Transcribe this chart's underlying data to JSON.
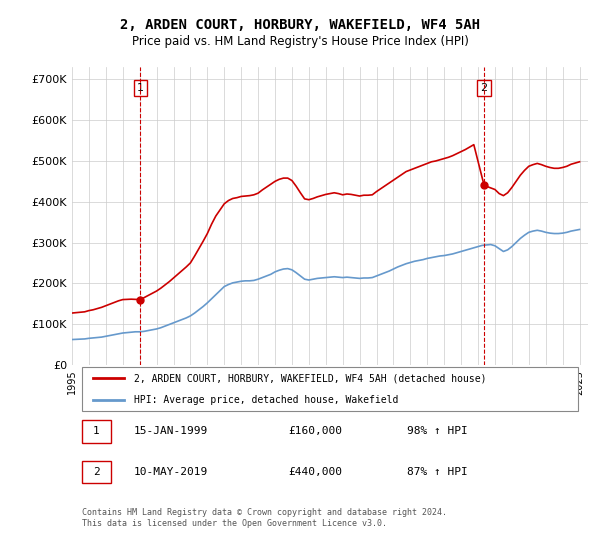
{
  "title": "2, ARDEN COURT, HORBURY, WAKEFIELD, WF4 5AH",
  "subtitle": "Price paid vs. HM Land Registry's House Price Index (HPI)",
  "title_fontsize": 11,
  "subtitle_fontsize": 9,
  "ylabel_ticks": [
    "£0",
    "£100K",
    "£200K",
    "£300K",
    "£400K",
    "£500K",
    "£600K",
    "£700K"
  ],
  "ytick_values": [
    0,
    100000,
    200000,
    300000,
    400000,
    500000,
    600000,
    700000
  ],
  "ylim": [
    0,
    730000
  ],
  "xlim_start": 1995.0,
  "xlim_end": 2025.5,
  "background_color": "#ffffff",
  "grid_color": "#cccccc",
  "purchase1_date": 1999.04,
  "purchase1_price": 160000,
  "purchase1_label": "1",
  "purchase2_date": 2019.36,
  "purchase2_price": 440000,
  "purchase2_label": "2",
  "red_line_color": "#cc0000",
  "blue_line_color": "#6699cc",
  "vline_color": "#cc0000",
  "annotation_box_color": "#cc0000",
  "legend_red_label": "2, ARDEN COURT, HORBURY, WAKEFIELD, WF4 5AH (detached house)",
  "legend_blue_label": "HPI: Average price, detached house, Wakefield",
  "table_row1": [
    "1",
    "15-JAN-1999",
    "£160,000",
    "98% ↑ HPI"
  ],
  "table_row2": [
    "2",
    "10-MAY-2019",
    "£440,000",
    "87% ↑ HPI"
  ],
  "footer": "Contains HM Land Registry data © Crown copyright and database right 2024.\nThis data is licensed under the Open Government Licence v3.0.",
  "hpi_years": [
    1995.0,
    1995.25,
    1995.5,
    1995.75,
    1996.0,
    1996.25,
    1996.5,
    1996.75,
    1997.0,
    1997.25,
    1997.5,
    1997.75,
    1998.0,
    1998.25,
    1998.5,
    1998.75,
    1999.0,
    1999.25,
    1999.5,
    1999.75,
    2000.0,
    2000.25,
    2000.5,
    2000.75,
    2001.0,
    2001.25,
    2001.5,
    2001.75,
    2002.0,
    2002.25,
    2002.5,
    2002.75,
    2003.0,
    2003.25,
    2003.5,
    2003.75,
    2004.0,
    2004.25,
    2004.5,
    2004.75,
    2005.0,
    2005.25,
    2005.5,
    2005.75,
    2006.0,
    2006.25,
    2006.5,
    2006.75,
    2007.0,
    2007.25,
    2007.5,
    2007.75,
    2008.0,
    2008.25,
    2008.5,
    2008.75,
    2009.0,
    2009.25,
    2009.5,
    2009.75,
    2010.0,
    2010.25,
    2010.5,
    2010.75,
    2011.0,
    2011.25,
    2011.5,
    2011.75,
    2012.0,
    2012.25,
    2012.5,
    2012.75,
    2013.0,
    2013.25,
    2013.5,
    2013.75,
    2014.0,
    2014.25,
    2014.5,
    2014.75,
    2015.0,
    2015.25,
    2015.5,
    2015.75,
    2016.0,
    2016.25,
    2016.5,
    2016.75,
    2017.0,
    2017.25,
    2017.5,
    2017.75,
    2018.0,
    2018.25,
    2018.5,
    2018.75,
    2019.0,
    2019.25,
    2019.5,
    2019.75,
    2020.0,
    2020.25,
    2020.5,
    2020.75,
    2021.0,
    2021.25,
    2021.5,
    2021.75,
    2022.0,
    2022.25,
    2022.5,
    2022.75,
    2023.0,
    2023.25,
    2023.5,
    2023.75,
    2024.0,
    2024.25,
    2024.5,
    2024.75,
    2025.0
  ],
  "hpi_values": [
    62000,
    62500,
    63000,
    63500,
    65000,
    66000,
    67000,
    68000,
    70000,
    72000,
    74000,
    76000,
    78000,
    79000,
    80000,
    81000,
    81000,
    82000,
    84000,
    86000,
    88000,
    91000,
    95000,
    99000,
    103000,
    107000,
    111000,
    115000,
    120000,
    127000,
    135000,
    143000,
    152000,
    162000,
    172000,
    182000,
    192000,
    197000,
    201000,
    203000,
    205000,
    206000,
    206000,
    207000,
    210000,
    214000,
    218000,
    222000,
    228000,
    232000,
    235000,
    236000,
    233000,
    226000,
    218000,
    210000,
    208000,
    210000,
    212000,
    213000,
    214000,
    215000,
    216000,
    215000,
    214000,
    215000,
    214000,
    213000,
    212000,
    213000,
    213000,
    214000,
    218000,
    222000,
    226000,
    230000,
    235000,
    240000,
    244000,
    248000,
    251000,
    254000,
    256000,
    258000,
    261000,
    263000,
    265000,
    267000,
    268000,
    270000,
    272000,
    275000,
    278000,
    281000,
    284000,
    287000,
    290000,
    293000,
    294000,
    295000,
    292000,
    285000,
    278000,
    282000,
    290000,
    300000,
    310000,
    318000,
    325000,
    328000,
    330000,
    328000,
    325000,
    323000,
    322000,
    322000,
    323000,
    325000,
    328000,
    330000,
    332000
  ],
  "property_years": [
    1995.0,
    1995.25,
    1995.5,
    1995.75,
    1996.0,
    1996.25,
    1996.5,
    1996.75,
    1997.0,
    1997.25,
    1997.5,
    1997.75,
    1998.0,
    1998.25,
    1998.5,
    1998.75,
    1999.04,
    2000.0,
    2000.25,
    2000.5,
    2000.75,
    2001.0,
    2001.25,
    2001.5,
    2001.75,
    2002.0,
    2002.25,
    2002.5,
    2002.75,
    2003.0,
    2003.25,
    2003.5,
    2003.75,
    2004.0,
    2004.25,
    2004.5,
    2004.75,
    2005.0,
    2005.25,
    2005.5,
    2005.75,
    2006.0,
    2006.25,
    2006.5,
    2006.75,
    2007.0,
    2007.25,
    2007.5,
    2007.75,
    2008.0,
    2008.25,
    2008.5,
    2008.75,
    2009.0,
    2009.25,
    2009.5,
    2009.75,
    2010.0,
    2010.25,
    2010.5,
    2010.75,
    2011.0,
    2011.25,
    2011.5,
    2011.75,
    2012.0,
    2012.25,
    2012.5,
    2012.75,
    2013.0,
    2013.25,
    2013.5,
    2013.75,
    2014.0,
    2014.25,
    2014.5,
    2014.75,
    2015.0,
    2015.25,
    2015.5,
    2015.75,
    2016.0,
    2016.25,
    2016.5,
    2016.75,
    2017.0,
    2017.25,
    2017.5,
    2017.75,
    2018.0,
    2018.25,
    2018.5,
    2018.75,
    2019.36,
    2020.0,
    2020.25,
    2020.5,
    2020.75,
    2021.0,
    2021.25,
    2021.5,
    2021.75,
    2022.0,
    2022.25,
    2022.5,
    2022.75,
    2023.0,
    2023.25,
    2023.5,
    2023.75,
    2024.0,
    2024.25,
    2024.5,
    2024.75,
    2025.0
  ],
  "property_values": [
    127000,
    128000,
    129000,
    130000,
    133000,
    135000,
    138000,
    141000,
    145000,
    149000,
    153000,
    157000,
    160000,
    160500,
    161000,
    160500,
    160000,
    181000,
    188000,
    196000,
    204000,
    213000,
    222000,
    231000,
    240000,
    250000,
    267000,
    285000,
    303000,
    322000,
    345000,
    365000,
    380000,
    395000,
    403000,
    408000,
    410000,
    413000,
    414000,
    415000,
    417000,
    421000,
    429000,
    436000,
    443000,
    450000,
    455000,
    458000,
    458000,
    452000,
    438000,
    422000,
    407000,
    405000,
    408000,
    412000,
    415000,
    418000,
    420000,
    422000,
    420000,
    417000,
    419000,
    418000,
    416000,
    414000,
    416000,
    416000,
    417000,
    425000,
    432000,
    439000,
    446000,
    453000,
    460000,
    467000,
    474000,
    478000,
    482000,
    486000,
    490000,
    494000,
    498000,
    500000,
    503000,
    506000,
    509000,
    513000,
    518000,
    523000,
    528000,
    534000,
    540000,
    440000,
    430000,
    420000,
    415000,
    422000,
    435000,
    450000,
    465000,
    477000,
    487000,
    491000,
    494000,
    491000,
    487000,
    484000,
    482000,
    482000,
    484000,
    487000,
    492000,
    495000,
    498000
  ]
}
